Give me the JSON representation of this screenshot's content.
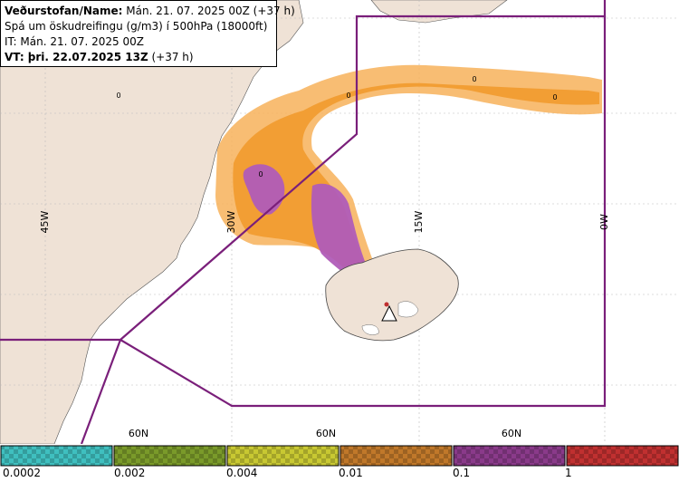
{
  "info": {
    "line1_label": "Veðurstofan/Name:",
    "line1_value": " Mán. 21. 07. 2025 00Z (+37 h)",
    "line2": "Spá um öskudreifingu (g/m3) í 500hPa (18000ft)",
    "line3": "IT: Mán. 21. 07. 2025 00Z",
    "line4_label": "VT: þri. 22.07.2025 13Z",
    "line4_value": " (+37 h)"
  },
  "map_labels": {
    "lon_45": "45W",
    "lon_30": "30W",
    "lon_15": "15W",
    "lon_0": "0W",
    "lat_a": "60N",
    "lat_b": "60N",
    "lat_c": "60N",
    "zero_a": "0",
    "zero_b": "0",
    "zero_c": "0",
    "zero_d": "0",
    "zero_e": "0"
  },
  "legend": {
    "labels": [
      "0.0002",
      "0.002",
      "0.004",
      "0.01",
      "0.1",
      "1"
    ],
    "colors": [
      "#3fbfbf",
      "#7a9a2a",
      "#c8c832",
      "#c0782a",
      "#8a3a8a",
      "#c03030"
    ]
  },
  "colors": {
    "land": "#efe2d6",
    "ash_low": "#f7b25a",
    "ash_mid": "#f19a2e",
    "ash_high": "#b05cb8",
    "boundary": "#7a1f7a",
    "volcano_marker": "#ffffff"
  }
}
